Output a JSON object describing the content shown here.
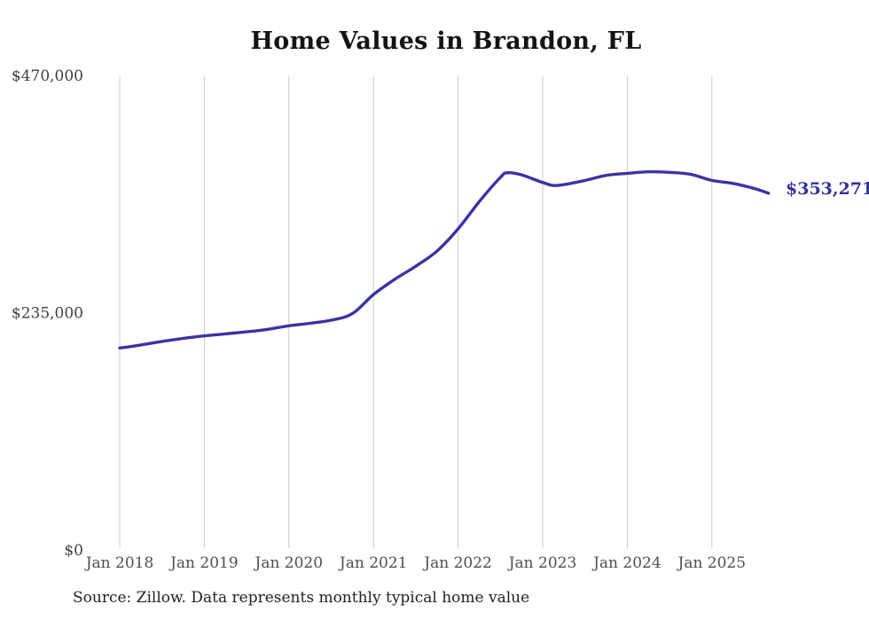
{
  "page": {
    "background_color": "#ffffff"
  },
  "chart_data": {
    "type": "line",
    "title": "Home Values in Brandon, FL",
    "source_note": "Source: Zillow. Data represents monthly typical home value",
    "xlabel": "",
    "ylabel": "",
    "ylim": [
      0,
      470000
    ],
    "grid": "vertical-only",
    "gridline_color": "#cccccc",
    "axis_label_color": "#4f4f4f",
    "y_ticks": [
      {
        "label": "$0",
        "value": 0
      },
      {
        "label": "$235,000",
        "value": 235000
      },
      {
        "label": "$470,000",
        "value": 470000
      }
    ],
    "x_ticks": [
      {
        "label": "Jan 2018",
        "year": 2018
      },
      {
        "label": "Jan 2019",
        "year": 2019
      },
      {
        "label": "Jan 2020",
        "year": 2020
      },
      {
        "label": "Jan 2021",
        "year": 2021
      },
      {
        "label": "Jan 2022",
        "year": 2022
      },
      {
        "label": "Jan 2023",
        "year": 2023
      },
      {
        "label": "Jan 2024",
        "year": 2024
      },
      {
        "label": "Jan 2025",
        "year": 2025
      }
    ],
    "series": [
      {
        "name": "Typical home value (monthly)",
        "color": "#3a34a3",
        "points": [
          [
            2018.0,
            200000
          ],
          [
            2018.25,
            203000
          ],
          [
            2018.5,
            206500
          ],
          [
            2018.75,
            209500
          ],
          [
            2019.0,
            212000
          ],
          [
            2019.25,
            214000
          ],
          [
            2019.5,
            216000
          ],
          [
            2019.75,
            218500
          ],
          [
            2020.0,
            222000
          ],
          [
            2020.25,
            224500
          ],
          [
            2020.5,
            227500
          ],
          [
            2020.75,
            234000
          ],
          [
            2021.0,
            253000
          ],
          [
            2021.25,
            268000
          ],
          [
            2021.5,
            281000
          ],
          [
            2021.75,
            296000
          ],
          [
            2022.0,
            318000
          ],
          [
            2022.25,
            345000
          ],
          [
            2022.5,
            369000
          ],
          [
            2022.58,
            373500
          ],
          [
            2022.75,
            371500
          ],
          [
            2023.0,
            364000
          ],
          [
            2023.17,
            361000
          ],
          [
            2023.5,
            366000
          ],
          [
            2023.75,
            371000
          ],
          [
            2024.0,
            373000
          ],
          [
            2024.25,
            374500
          ],
          [
            2024.5,
            374000
          ],
          [
            2024.75,
            372000
          ],
          [
            2025.0,
            366000
          ],
          [
            2025.25,
            363000
          ],
          [
            2025.5,
            358000
          ],
          [
            2025.67,
            353271
          ]
        ]
      }
    ],
    "end_label": {
      "text": "$353,271",
      "value": 353271,
      "color": "#32329e"
    }
  }
}
